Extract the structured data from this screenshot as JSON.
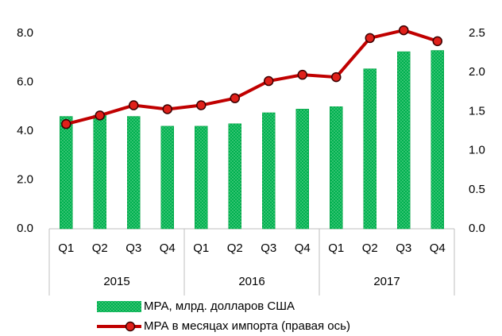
{
  "chart_data": {
    "type": "bar_line",
    "categories": [
      "Q1",
      "Q2",
      "Q3",
      "Q4",
      "Q1",
      "Q2",
      "Q3",
      "Q4",
      "Q1",
      "Q2",
      "Q3",
      "Q4"
    ],
    "groups": [
      "2015",
      "2016",
      "2017"
    ],
    "series": [
      {
        "name": "МРА, млрд. долларов США",
        "color": "#00b050",
        "type": "bar",
        "values": [
          4.6,
          4.65,
          4.6,
          4.2,
          4.2,
          4.3,
          4.75,
          4.9,
          5.0,
          6.55,
          7.25,
          7.3
        ]
      },
      {
        "name": "МРА в месяцах импорта (правая ось)",
        "color": "#c00000",
        "type": "line",
        "axis": "y2",
        "values": [
          1.34,
          1.45,
          1.58,
          1.53,
          1.58,
          1.67,
          1.89,
          1.97,
          1.94,
          2.44,
          2.54,
          2.4
        ]
      }
    ],
    "ylim": [
      0,
      8
    ],
    "yticks": [
      {
        "value": 0,
        "label": "0.0"
      },
      {
        "value": 2,
        "label": "2.0"
      },
      {
        "value": 4,
        "label": "4.0"
      },
      {
        "value": 6,
        "label": "6.0"
      },
      {
        "value": 8,
        "label": "8.0"
      }
    ],
    "y2lim": [
      0,
      2.5
    ],
    "y2ticks": [
      {
        "value": 0,
        "label": "0.0"
      },
      {
        "value": 0.5,
        "label": "0.5"
      },
      {
        "value": 1,
        "label": "1.0"
      },
      {
        "value": 1.5,
        "label": "1.5"
      },
      {
        "value": 2,
        "label": "2.0"
      },
      {
        "value": 2.5,
        "label": "2.5"
      }
    ],
    "legend": "bottom"
  }
}
